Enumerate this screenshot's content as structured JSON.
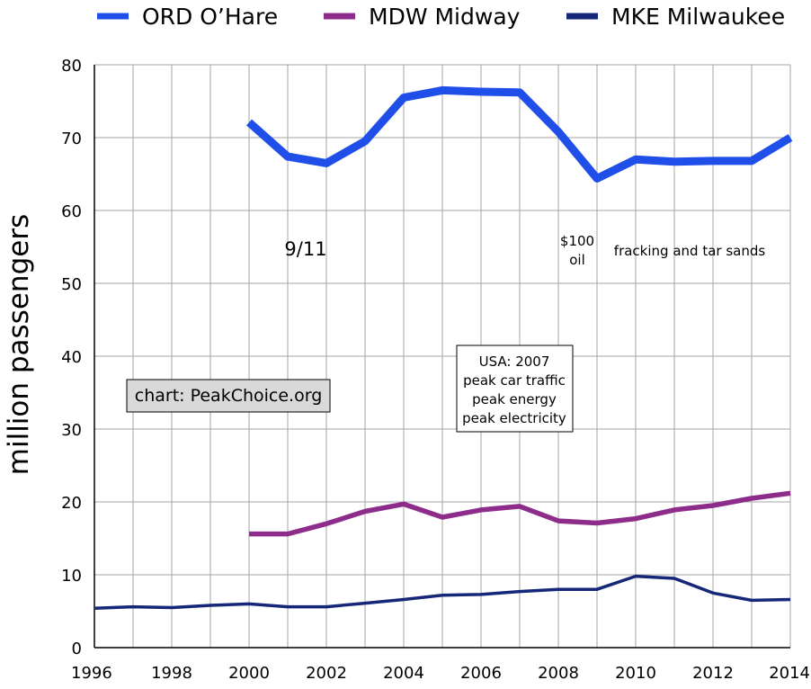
{
  "chart_data": {
    "type": "line",
    "title": "",
    "xlabel": "",
    "ylabel": "million passengers",
    "xlim": [
      1996,
      2014
    ],
    "ylim": [
      0,
      80
    ],
    "x_ticks": [
      1996,
      1998,
      2000,
      2002,
      2004,
      2006,
      2008,
      2010,
      2012,
      2014
    ],
    "y_ticks": [
      0,
      10,
      20,
      30,
      40,
      50,
      60,
      70,
      80
    ],
    "grid": true,
    "legend_position": "top",
    "series": [
      {
        "name": "ORD O’Hare",
        "color": "#1f4fe8",
        "points": [
          [
            2000,
            72.1
          ],
          [
            2001,
            67.4
          ],
          [
            2002,
            66.5
          ],
          [
            2003,
            69.5
          ],
          [
            2004,
            75.5
          ],
          [
            2005,
            76.5
          ],
          [
            2006,
            76.3
          ],
          [
            2007,
            76.2
          ],
          [
            2008,
            70.8
          ],
          [
            2009,
            64.4
          ],
          [
            2010,
            67.0
          ],
          [
            2011,
            66.7
          ],
          [
            2012,
            66.8
          ],
          [
            2013,
            66.8
          ],
          [
            2014,
            70.0
          ]
        ]
      },
      {
        "name": "MDW Midway",
        "color": "#8e2c8c",
        "points": [
          [
            2000,
            15.6
          ],
          [
            2001,
            15.6
          ],
          [
            2002,
            17.0
          ],
          [
            2003,
            18.7
          ],
          [
            2004,
            19.7
          ],
          [
            2005,
            17.9
          ],
          [
            2006,
            18.9
          ],
          [
            2007,
            19.4
          ],
          [
            2008,
            17.4
          ],
          [
            2009,
            17.1
          ],
          [
            2010,
            17.7
          ],
          [
            2011,
            18.9
          ],
          [
            2012,
            19.5
          ],
          [
            2013,
            20.5
          ],
          [
            2014,
            21.2
          ]
        ]
      },
      {
        "name": "MKE Milwaukee",
        "color": "#152778",
        "points": [
          [
            1996,
            5.4
          ],
          [
            1997,
            5.6
          ],
          [
            1998,
            5.5
          ],
          [
            1999,
            5.8
          ],
          [
            2000,
            6.0
          ],
          [
            2001,
            5.6
          ],
          [
            2002,
            5.6
          ],
          [
            2003,
            6.1
          ],
          [
            2004,
            6.6
          ],
          [
            2005,
            7.2
          ],
          [
            2006,
            7.3
          ],
          [
            2007,
            7.7
          ],
          [
            2008,
            8.0
          ],
          [
            2009,
            8.0
          ],
          [
            2010,
            9.8
          ],
          [
            2011,
            9.5
          ],
          [
            2012,
            7.5
          ],
          [
            2013,
            6.5
          ],
          [
            2014,
            6.6
          ]
        ]
      }
    ],
    "annotations": [
      {
        "lines": [
          "9/11"
        ],
        "boxed": false,
        "shaded": false
      },
      {
        "lines": [
          "$100",
          "oil"
        ],
        "boxed": false,
        "shaded": false
      },
      {
        "lines": [
          "fracking and tar sands"
        ],
        "boxed": false,
        "shaded": false
      },
      {
        "lines": [
          "USA: 2007",
          "peak car traffic",
          "peak energy",
          "peak electricity"
        ],
        "boxed": true,
        "shaded": false
      },
      {
        "lines": [
          "chart: PeakChoice.org"
        ],
        "boxed": true,
        "shaded": true
      }
    ]
  }
}
